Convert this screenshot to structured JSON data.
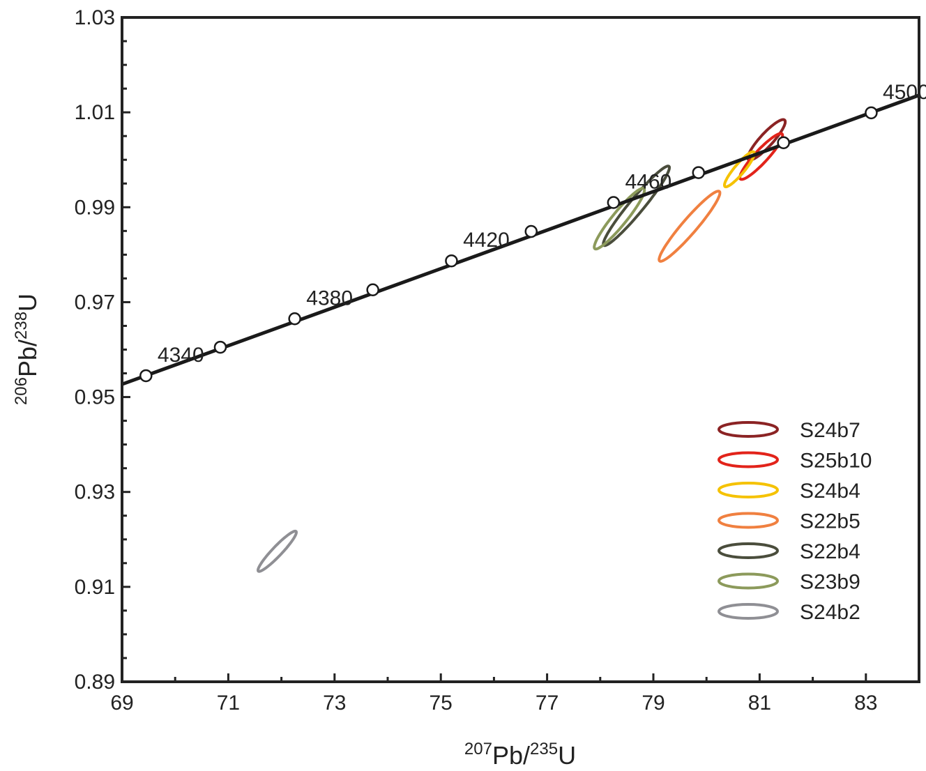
{
  "chart_data": {
    "type": "scatter",
    "title": "",
    "xlabel": {
      "pre_sup": "207",
      "main": "Pb/",
      "sup": "235",
      "post": "U"
    },
    "ylabel": {
      "pre_sup": "206",
      "main": "Pb/",
      "sup": "238",
      "post": "U"
    },
    "xlim": [
      69,
      84
    ],
    "ylim": [
      0.89,
      1.03
    ],
    "x_ticks": [
      "69",
      "71",
      "73",
      "75",
      "77",
      "79",
      "81",
      "83"
    ],
    "y_ticks": [
      "0.89",
      "0.91",
      "0.93",
      "0.95",
      "0.97",
      "0.99",
      "1.01",
      "1.03"
    ],
    "concordia": {
      "line": [
        [
          69.0,
          0.9527
        ],
        [
          84.0,
          1.0136
        ]
      ],
      "markers": [
        {
          "x": 69.45,
          "y": 0.9545,
          "age": "4340"
        },
        {
          "x": 70.85,
          "y": 0.9605,
          "age": ""
        },
        {
          "x": 72.25,
          "y": 0.9665,
          "age": "4380"
        },
        {
          "x": 73.72,
          "y": 0.9726,
          "age": ""
        },
        {
          "x": 75.2,
          "y": 0.9787,
          "age": "4420"
        },
        {
          "x": 76.7,
          "y": 0.9849,
          "age": ""
        },
        {
          "x": 78.25,
          "y": 0.991,
          "age": "4460"
        },
        {
          "x": 79.85,
          "y": 0.9973,
          "age": ""
        },
        {
          "x": 81.45,
          "y": 1.0036,
          "age": ""
        },
        {
          "x": 83.1,
          "y": 1.0099,
          "age": "4500"
        }
      ]
    },
    "series": [
      {
        "name": "S24b7",
        "color": "#8b2324",
        "center": [
          81.13,
          1.0042
        ],
        "a": [
          0.35,
          0.004
        ],
        "b": [
          0.04,
          -0.0015
        ]
      },
      {
        "name": "S25b10",
        "color": "#e2231a",
        "center": [
          81.03,
          1.0007
        ],
        "a": [
          0.4,
          0.0046
        ],
        "b": [
          0.04,
          -0.0015
        ]
      },
      {
        "name": "S24b4",
        "color": "#f5c200",
        "center": [
          80.62,
          0.998
        ],
        "a": [
          0.28,
          0.0035
        ],
        "b": [
          0.03,
          -0.0012
        ]
      },
      {
        "name": "S22b5",
        "color": "#f08040",
        "center": [
          79.68,
          0.986
        ],
        "a": [
          0.57,
          0.0072
        ],
        "b": [
          0.05,
          -0.0017
        ]
      },
      {
        "name": "S22b4",
        "color": "#4a4d3c",
        "center": [
          78.68,
          0.9903
        ],
        "a": [
          0.62,
          0.0082
        ],
        "b": [
          0.05,
          -0.0017
        ]
      },
      {
        "name": "S23b9",
        "color": "#8c9a5b",
        "center": [
          78.36,
          0.9876
        ],
        "a": [
          0.47,
          0.0062
        ],
        "b": [
          0.05,
          -0.0016
        ]
      },
      {
        "name": "S24b2",
        "color": "#8f8f94",
        "center": [
          71.92,
          0.9175
        ],
        "a": [
          0.36,
          0.0041
        ],
        "b": [
          0.03,
          -0.0011
        ]
      }
    ],
    "legend_position": "bottom-right",
    "grid": false
  }
}
